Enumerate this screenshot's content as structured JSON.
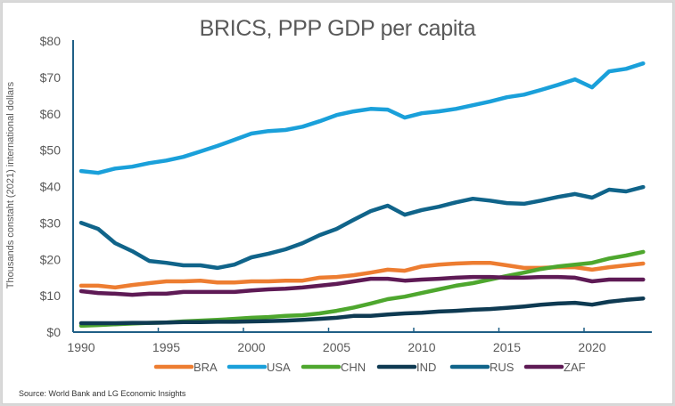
{
  "chart_data": {
    "type": "line",
    "title": "BRICS, PPP GDP per capita",
    "xlabel": "",
    "ylabel": "Thousands constaht (2021) international dollars",
    "source": "Source: World Bank and LG Economic Insights",
    "ylim": [
      0,
      80
    ],
    "yticks": [
      0,
      10,
      20,
      30,
      40,
      50,
      60,
      70,
      80
    ],
    "ytick_labels": [
      "$0",
      "$10",
      "$20",
      "$30",
      "$40",
      "$50",
      "$60",
      "$70",
      "$80"
    ],
    "xticks": [
      1990,
      1995,
      2000,
      2005,
      2010,
      2015,
      2020
    ],
    "xtick_labels": [
      "1990",
      "1995",
      "2000",
      "2005",
      "2010",
      "2015",
      "2020"
    ],
    "grid": false,
    "legend_position": "bottom",
    "x": [
      1990,
      1991,
      1992,
      1993,
      1994,
      1995,
      1996,
      1997,
      1998,
      1999,
      2000,
      2001,
      2002,
      2003,
      2004,
      2005,
      2006,
      2007,
      2008,
      2009,
      2010,
      2011,
      2012,
      2013,
      2014,
      2015,
      2016,
      2017,
      2018,
      2019,
      2020,
      2021,
      2022,
      2023
    ],
    "series": [
      {
        "name": "BRA",
        "color": "#ED7D31",
        "values": [
          12.5,
          12.5,
          12.0,
          12.7,
          13.2,
          13.7,
          13.7,
          13.9,
          13.4,
          13.4,
          13.7,
          13.7,
          13.9,
          13.9,
          14.7,
          14.9,
          15.4,
          16.1,
          16.9,
          16.6,
          17.8,
          18.3,
          18.6,
          18.8,
          18.8,
          18.1,
          17.4,
          17.4,
          17.6,
          17.6,
          16.9,
          17.6,
          18.1,
          18.6
        ]
      },
      {
        "name": "USA",
        "color": "#1AA0DA",
        "values": [
          44.0,
          43.5,
          44.7,
          45.2,
          46.2,
          46.9,
          47.9,
          49.4,
          50.9,
          52.6,
          54.3,
          55.0,
          55.3,
          56.2,
          57.7,
          59.4,
          60.4,
          61.1,
          60.9,
          58.7,
          59.9,
          60.4,
          61.1,
          62.1,
          63.1,
          64.3,
          65.0,
          66.3,
          67.7,
          69.2,
          67.0,
          71.4,
          72.1,
          73.6
        ]
      },
      {
        "name": "CHN",
        "color": "#4EA72E",
        "values": [
          1.5,
          1.7,
          1.9,
          2.1,
          2.3,
          2.4,
          2.7,
          2.9,
          3.1,
          3.4,
          3.7,
          3.9,
          4.2,
          4.4,
          4.9,
          5.6,
          6.5,
          7.6,
          8.8,
          9.5,
          10.5,
          11.5,
          12.5,
          13.2,
          14.2,
          15.2,
          16.1,
          17.1,
          17.8,
          18.3,
          18.8,
          20.0,
          20.8,
          21.8
        ]
      },
      {
        "name": "IND",
        "color": "#0E3A52",
        "values": [
          2.2,
          2.2,
          2.2,
          2.3,
          2.3,
          2.4,
          2.5,
          2.5,
          2.6,
          2.6,
          2.7,
          2.8,
          2.9,
          3.1,
          3.4,
          3.7,
          4.2,
          4.2,
          4.6,
          4.9,
          5.1,
          5.4,
          5.6,
          5.9,
          6.1,
          6.4,
          6.8,
          7.3,
          7.6,
          7.8,
          7.3,
          8.1,
          8.6,
          9.0
        ]
      },
      {
        "name": "RUS",
        "color": "#10648A",
        "values": [
          29.8,
          28.1,
          24.2,
          22.0,
          19.3,
          18.8,
          18.1,
          18.1,
          17.4,
          18.3,
          20.3,
          21.3,
          22.5,
          24.2,
          26.4,
          28.1,
          30.6,
          33.0,
          34.5,
          32.0,
          33.3,
          34.2,
          35.4,
          36.4,
          35.9,
          35.2,
          35.0,
          35.9,
          36.9,
          37.7,
          36.7,
          38.9,
          38.4,
          39.6
        ]
      },
      {
        "name": "ZAF",
        "color": "#5E1A55",
        "values": [
          11.0,
          10.5,
          10.3,
          10.0,
          10.3,
          10.3,
          10.8,
          10.8,
          10.8,
          10.8,
          11.2,
          11.5,
          11.7,
          12.0,
          12.5,
          13.0,
          13.7,
          14.4,
          14.4,
          13.9,
          14.2,
          14.4,
          14.7,
          14.9,
          14.9,
          14.7,
          14.7,
          14.9,
          14.9,
          14.7,
          13.7,
          14.2,
          14.2,
          14.2
        ]
      }
    ]
  }
}
